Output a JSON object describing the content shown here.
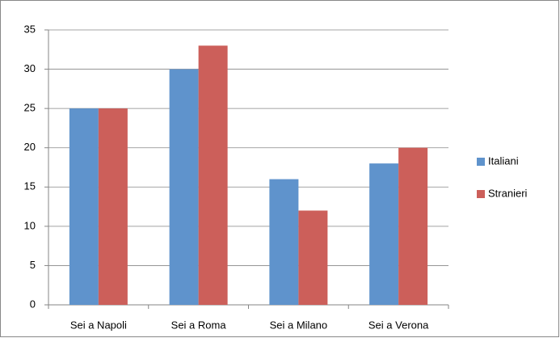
{
  "chart_data": {
    "type": "bar",
    "categories": [
      "Sei a Napoli",
      "Sei a Roma",
      "Sei a Milano",
      "Sei a Verona"
    ],
    "series": [
      {
        "name": "Italiani",
        "color": "#5f93cc",
        "values": [
          25,
          30,
          16,
          18
        ]
      },
      {
        "name": "Stranieri",
        "color": "#cc5f5a",
        "values": [
          25,
          33,
          12,
          20
        ]
      }
    ],
    "ylim": [
      0,
      35
    ],
    "yticks": [
      0,
      5,
      10,
      15,
      20,
      25,
      30,
      35
    ],
    "grid": true,
    "legend": "right"
  }
}
